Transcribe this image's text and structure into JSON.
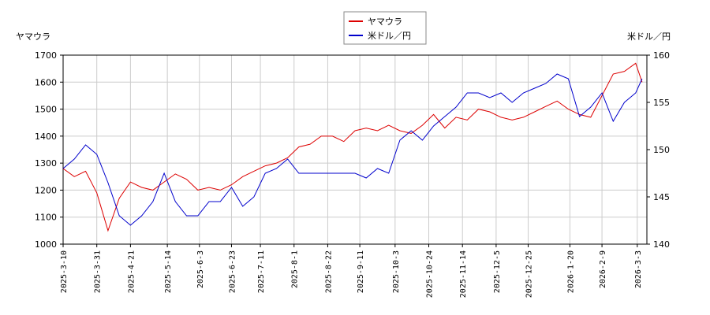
{
  "chart_data": {
    "type": "line",
    "x": [
      "2025-03-10",
      "2025-03-17",
      "2025-03-24",
      "2025-03-31",
      "2025-04-07",
      "2025-04-14",
      "2025-04-21",
      "2025-04-28",
      "2025-05-05",
      "2025-05-12",
      "2025-05-19",
      "2025-05-26",
      "2025-06-02",
      "2025-06-09",
      "2025-06-16",
      "2025-06-23",
      "2025-06-30",
      "2025-07-07",
      "2025-07-14",
      "2025-07-21",
      "2025-07-28",
      "2025-08-04",
      "2025-08-11",
      "2025-08-18",
      "2025-08-25",
      "2025-09-01",
      "2025-09-08",
      "2025-09-15",
      "2025-09-22",
      "2025-09-29",
      "2025-10-06",
      "2025-10-13",
      "2025-10-20",
      "2025-10-27",
      "2025-11-03",
      "2025-11-10",
      "2025-11-17",
      "2025-11-24",
      "2025-12-01",
      "2025-12-08",
      "2025-12-15",
      "2025-12-22",
      "2025-12-29",
      "2026-01-05",
      "2026-01-12",
      "2026-01-19",
      "2026-01-26",
      "2026-02-02",
      "2026-02-09",
      "2026-02-16",
      "2026-02-23",
      "2026-03-02",
      "2026-03-06"
    ],
    "series": [
      {
        "name": "ヤマウラ",
        "color": "#dd0000",
        "axis": "y",
        "values": [
          1280,
          1250,
          1270,
          1190,
          1050,
          1170,
          1230,
          1210,
          1200,
          1230,
          1260,
          1240,
          1200,
          1210,
          1200,
          1220,
          1250,
          1270,
          1290,
          1300,
          1320,
          1360,
          1370,
          1400,
          1400,
          1380,
          1420,
          1430,
          1420,
          1440,
          1420,
          1410,
          1440,
          1480,
          1430,
          1470,
          1460,
          1500,
          1490,
          1470,
          1460,
          1470,
          1490,
          1510,
          1530,
          1500,
          1480,
          1470,
          1550,
          1630,
          1640,
          1670,
          1600
        ]
      },
      {
        "name": "米ドル／円",
        "color": "#0000cc",
        "axis": "y2",
        "values": [
          148,
          149,
          150.5,
          149.5,
          146.5,
          143,
          142,
          143,
          144.5,
          147.5,
          144.5,
          143,
          143,
          144.5,
          144.5,
          146,
          144,
          145,
          147.5,
          148,
          149,
          147.5,
          147.5,
          147.5,
          147.5,
          147.5,
          147.5,
          147,
          148,
          147.5,
          151,
          152,
          151,
          152.5,
          153.5,
          154.5,
          156,
          156,
          155.5,
          156,
          155,
          156,
          156.5,
          157,
          158,
          157.5,
          153.5,
          154.5,
          156,
          153,
          155,
          156,
          157.5
        ]
      }
    ],
    "ylabel": "ヤマウラ",
    "y2label": "米ドル／円",
    "xlim": [
      "2025-03-10",
      "2026-03-09"
    ],
    "xticks": [
      {
        "value": "2025-03-10",
        "label": "2025-3-10"
      },
      {
        "value": "2025-03-31",
        "label": "2025-3-31"
      },
      {
        "value": "2025-04-21",
        "label": "2025-4-21"
      },
      {
        "value": "2025-05-14",
        "label": "2025-5-14"
      },
      {
        "value": "2025-06-03",
        "label": "2025-6-3"
      },
      {
        "value": "2025-06-23",
        "label": "2025-6-23"
      },
      {
        "value": "2025-07-11",
        "label": "2025-7-11"
      },
      {
        "value": "2025-08-01",
        "label": "2025-8-1"
      },
      {
        "value": "2025-08-22",
        "label": "2025-8-22"
      },
      {
        "value": "2025-09-11",
        "label": "2025-9-11"
      },
      {
        "value": "2025-10-03",
        "label": "2025-10-3"
      },
      {
        "value": "2025-10-24",
        "label": "2025-10-24"
      },
      {
        "value": "2025-11-14",
        "label": "2025-11-14"
      },
      {
        "value": "2025-12-05",
        "label": "2025-12-5"
      },
      {
        "value": "2025-12-25",
        "label": "2025-12-25"
      },
      {
        "value": "2026-01-20",
        "label": "2026-1-20"
      },
      {
        "value": "2026-02-09",
        "label": "2026-2-9"
      },
      {
        "value": "2026-03-03",
        "label": "2026-3-3"
      }
    ],
    "ylim": [
      1000,
      1700
    ],
    "yticks": [
      1000,
      1100,
      1200,
      1300,
      1400,
      1500,
      1600,
      1700
    ],
    "y2lim": [
      140,
      160
    ],
    "y2ticks": [
      140,
      145,
      150,
      155,
      160
    ],
    "grid": true
  }
}
